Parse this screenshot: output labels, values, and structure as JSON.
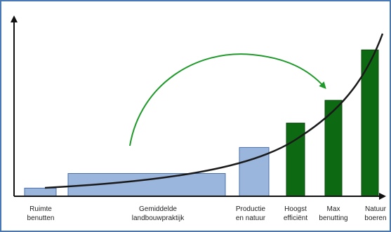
{
  "colors": {
    "frame": "#4a78b5",
    "axis": "#111111",
    "bar_blue": "#9bb6dc",
    "bar_blue_stroke": "#4a6fa8",
    "bar_green": "#0e6a12",
    "bar_green_stroke": "#0a4a0c",
    "curve": "#1a1a1a",
    "arrow": "#1f9a2a"
  },
  "chart_data": {
    "type": "bar",
    "title": "",
    "xlabel": "",
    "ylabel": "",
    "ylim": [
      0,
      100
    ],
    "grid": false,
    "legend": "none",
    "categories": [
      {
        "lines": [
          "Ruimte",
          "benutten"
        ],
        "value": 5,
        "width_units": 1,
        "color": "blue"
      },
      {
        "lines": [
          "Gemiddelde",
          "landbouwpraktijk"
        ],
        "value": 14,
        "width_units": 5,
        "color": "blue"
      },
      {
        "lines": [
          "Productie",
          "en natuur"
        ],
        "value": 30,
        "width_units": 1,
        "color": "blue"
      },
      {
        "lines": [
          "Hoogst",
          "efficiënt"
        ],
        "value": 45,
        "width_units": 0.6,
        "color": "green"
      },
      {
        "lines": [
          "Max",
          "benutting"
        ],
        "value": 59,
        "width_units": 0.6,
        "color": "green"
      },
      {
        "lines": [
          "Natuur",
          "boeren"
        ],
        "value": 90,
        "width_units": 0.6,
        "color": "green"
      }
    ],
    "trend": "exponential curve rising from left to right",
    "annotation": "green curved arrow pointing from the middle bars up toward the tall green bars"
  }
}
